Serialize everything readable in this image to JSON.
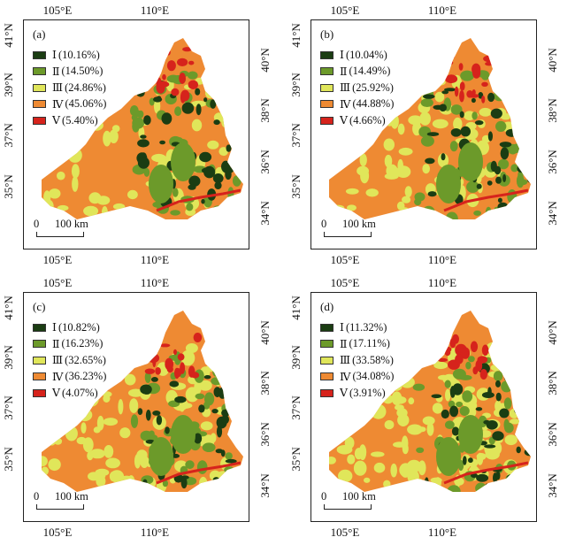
{
  "colors": {
    "I": "#1b3d13",
    "II": "#6c9a2a",
    "III": "#e0e65a",
    "IV": "#ee8a33",
    "V": "#d6231c"
  },
  "panels": [
    {
      "label": "(a)",
      "lon_ticks": [
        "105°E",
        "110°E"
      ],
      "lat_left": [
        "41°N",
        "39°N",
        "37°N",
        "35°N"
      ],
      "lat_right": [
        "40°N",
        "38°N",
        "36°N",
        "34°N"
      ],
      "scale": {
        "zero": "0",
        "dist": "100 km"
      },
      "legend": [
        {
          "class": "Ⅰ",
          "pct": "(10.16%)"
        },
        {
          "class": "Ⅱ",
          "pct": "(14.50%)"
        },
        {
          "class": "Ⅲ",
          "pct": "(24.86%)"
        },
        {
          "class": "Ⅳ",
          "pct": "(45.06%)"
        },
        {
          "class": "Ⅴ",
          "pct": "(5.40%)"
        }
      ]
    },
    {
      "label": "(b)",
      "lon_ticks": [
        "105°E",
        "110°E"
      ],
      "lat_left": [
        "41°N",
        "39°N",
        "37°N",
        "35°N"
      ],
      "lat_right": [
        "40°N",
        "38°N",
        "36°N",
        "34°N"
      ],
      "scale": {
        "zero": "0",
        "dist": "100 km"
      },
      "legend": [
        {
          "class": "Ⅰ",
          "pct": "(10.04%)"
        },
        {
          "class": "Ⅱ",
          "pct": "(14.49%)"
        },
        {
          "class": "Ⅲ",
          "pct": "(25.92%)"
        },
        {
          "class": "Ⅳ",
          "pct": "(44.88%)"
        },
        {
          "class": "Ⅴ",
          "pct": "(4.66%)"
        }
      ]
    },
    {
      "label": "(c)",
      "lon_ticks": [
        "105°E",
        "110°E"
      ],
      "lat_left": [
        "41°N",
        "39°N",
        "37°N",
        "35°N"
      ],
      "lat_right": [
        "40°N",
        "38°N",
        "36°N",
        "34°N"
      ],
      "scale": {
        "zero": "0",
        "dist": "100 km"
      },
      "legend": [
        {
          "class": "Ⅰ",
          "pct": "(10.82%)"
        },
        {
          "class": "Ⅱ",
          "pct": "(16.23%)"
        },
        {
          "class": "Ⅲ",
          "pct": "(32.65%)"
        },
        {
          "class": "Ⅳ",
          "pct": "(36.23%)"
        },
        {
          "class": "Ⅴ",
          "pct": "(4.07%)"
        }
      ]
    },
    {
      "label": "(d)",
      "lon_ticks": [
        "105°E",
        "110°E"
      ],
      "lat_left": [
        "41°N",
        "39°N",
        "37°N",
        "35°N"
      ],
      "lat_right": [
        "40°N",
        "38°N",
        "36°N",
        "34°N"
      ],
      "scale": {
        "zero": "0",
        "dist": "100 km"
      },
      "legend": [
        {
          "class": "Ⅰ",
          "pct": "(11.32%)"
        },
        {
          "class": "Ⅱ",
          "pct": "(17.11%)"
        },
        {
          "class": "Ⅲ",
          "pct": "(33.58%)"
        },
        {
          "class": "Ⅳ",
          "pct": "(34.08%)"
        },
        {
          "class": "Ⅴ",
          "pct": "(3.91%)"
        }
      ]
    }
  ]
}
